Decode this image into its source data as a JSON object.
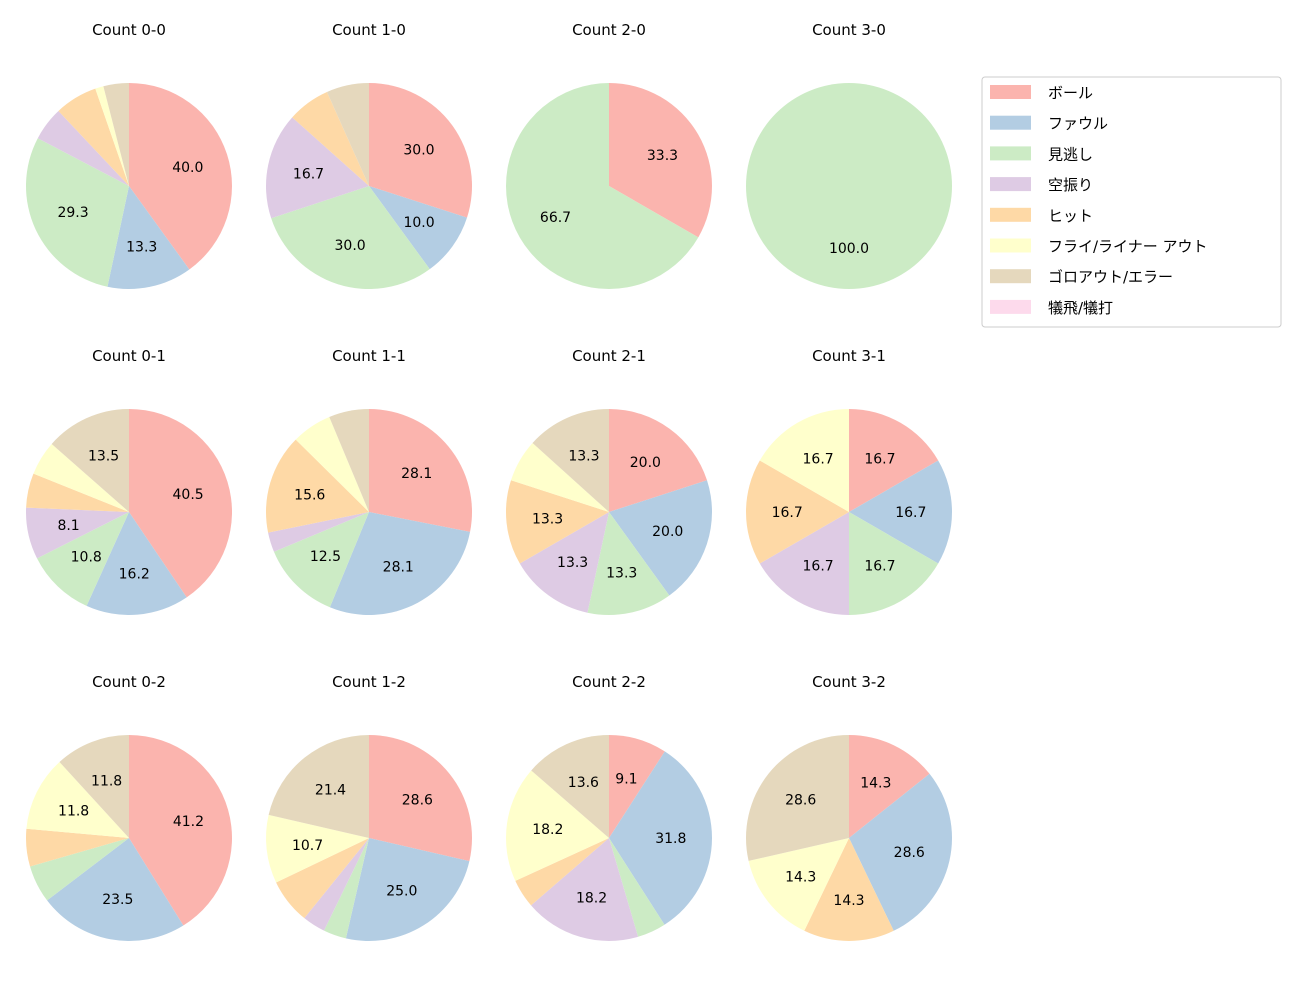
{
  "chart_data": {
    "type": "pie",
    "legend": {
      "placement": "right",
      "entries": [
        "ボール",
        "ファウル",
        "見逃し",
        "空振り",
        "ヒット",
        "フライ/ライナー アウト",
        "ゴロアウト/エラー",
        "犠飛/犠打"
      ]
    },
    "colors": [
      "#fbb4ae",
      "#b3cde3",
      "#ccebc5",
      "#decbe4",
      "#fed9a6",
      "#ffffcc",
      "#e5d8bd",
      "#fddaec"
    ],
    "start_angle": "top",
    "direction": "clockwise",
    "label_threshold_percent": 8,
    "charts": [
      {
        "title": "Count 0-0",
        "values": [
          40.0,
          13.3,
          29.3,
          5.3,
          6.7,
          1.3,
          4.0,
          0
        ]
      },
      {
        "title": "Count 1-0",
        "values": [
          30.0,
          10.0,
          30.0,
          16.7,
          6.7,
          0,
          6.7,
          0
        ]
      },
      {
        "title": "Count 2-0",
        "values": [
          33.3,
          0,
          66.7,
          0,
          0,
          0,
          0,
          0
        ]
      },
      {
        "title": "Count 3-0",
        "values": [
          0,
          0,
          100.0,
          0,
          0,
          0,
          0,
          0
        ]
      },
      {
        "title": "Count 0-1",
        "values": [
          40.5,
          16.2,
          10.8,
          8.1,
          5.4,
          5.4,
          13.5,
          0
        ]
      },
      {
        "title": "Count 1-1",
        "values": [
          28.1,
          28.1,
          12.5,
          3.1,
          15.6,
          6.3,
          6.3,
          0
        ]
      },
      {
        "title": "Count 2-1",
        "values": [
          20.0,
          20.0,
          13.3,
          13.3,
          13.3,
          6.7,
          13.3,
          0
        ]
      },
      {
        "title": "Count 3-1",
        "values": [
          16.7,
          16.7,
          16.7,
          16.7,
          16.7,
          16.7,
          0,
          0
        ]
      },
      {
        "title": "Count 0-2",
        "values": [
          41.2,
          23.5,
          5.9,
          0,
          5.9,
          11.8,
          11.8,
          0
        ]
      },
      {
        "title": "Count 1-2",
        "values": [
          28.6,
          25.0,
          3.6,
          3.6,
          7.1,
          10.7,
          21.4,
          0
        ]
      },
      {
        "title": "Count 2-2",
        "values": [
          9.1,
          31.8,
          4.5,
          18.2,
          4.5,
          18.2,
          13.6,
          0
        ]
      },
      {
        "title": "Count 3-2",
        "values": [
          14.3,
          28.6,
          0,
          0,
          14.3,
          14.3,
          28.6,
          0
        ]
      }
    ]
  }
}
